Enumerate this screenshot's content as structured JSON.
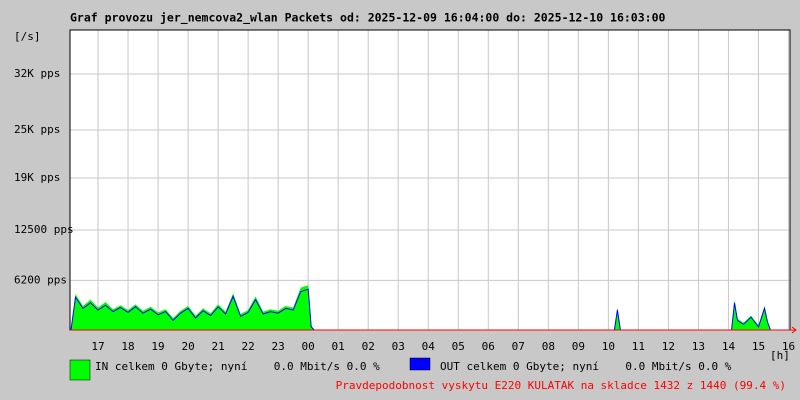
{
  "chart_data": {
    "type": "area",
    "title": "Graf provozu jer_nemcova2_wlan Packets od: 2025-12-09 16:04:00 do: 2025-12-10 16:03:00",
    "y_label": "[/s]",
    "x_label": "[h]",
    "x": [
      16.1,
      16.25,
      16.5,
      16.75,
      17,
      17.25,
      17.5,
      17.75,
      18,
      18.25,
      18.5,
      18.75,
      19,
      19.25,
      19.5,
      19.75,
      20,
      20.25,
      20.5,
      20.75,
      21,
      21.25,
      21.5,
      21.75,
      22,
      22.25,
      22.5,
      22.75,
      23,
      23.25,
      23.5,
      23.75,
      24,
      24.1,
      24.2,
      30,
      34.2,
      34.3,
      34.4,
      34.5,
      36,
      38.1,
      38.2,
      38.3,
      38.5,
      38.75,
      39,
      39.2,
      39.3,
      39.4,
      40.05
    ],
    "series": [
      {
        "name": "IN celkem 0 Gbyte; nyní    0.0 Mbit/s 0.0 %",
        "color": "#00ff00",
        "values": [
          0,
          4500,
          3000,
          3800,
          2800,
          3500,
          2600,
          3100,
          2500,
          3200,
          2400,
          2900,
          2200,
          2600,
          1500,
          2400,
          3000,
          1800,
          2700,
          2100,
          3200,
          2300,
          4600,
          2000,
          2500,
          4200,
          2300,
          2600,
          2400,
          3000,
          2800,
          5300,
          5600,
          600,
          0,
          0,
          0,
          2800,
          0,
          0,
          0,
          0,
          3800,
          1400,
          900,
          1800,
          600,
          3000,
          1200,
          0,
          0
        ]
      },
      {
        "name": "OUT celkem 0 Gbyte; nyní    0.0 Mbit/s 0.0 %",
        "color": "#0000ff",
        "values": [
          0,
          4100,
          2700,
          3400,
          2500,
          3100,
          2300,
          2800,
          2200,
          2900,
          2100,
          2600,
          1900,
          2300,
          1200,
          2100,
          2700,
          1500,
          2400,
          1800,
          2900,
          2000,
          4200,
          1700,
          2200,
          3800,
          2000,
          2300,
          2100,
          2700,
          2500,
          4800,
          5100,
          400,
          0,
          0,
          0,
          2500,
          0,
          0,
          0,
          0,
          3400,
          1200,
          700,
          1600,
          400,
          2700,
          1000,
          0,
          0
        ]
      }
    ],
    "xlim": [
      16.0667,
      40.05
    ],
    "xticks": [
      17,
      18,
      19,
      20,
      21,
      22,
      23,
      {
        "value": 24,
        "label": "00"
      },
      {
        "value": 25,
        "label": "01"
      },
      {
        "value": 26,
        "label": "02"
      },
      {
        "value": 27,
        "label": "03"
      },
      {
        "value": 28,
        "label": "04"
      },
      {
        "value": 29,
        "label": "05"
      },
      {
        "value": 30,
        "label": "06"
      },
      {
        "value": 31,
        "label": "07"
      },
      {
        "value": 32,
        "label": "08"
      },
      {
        "value": 33,
        "label": "09"
      },
      {
        "value": 34,
        "label": "10"
      },
      {
        "value": 35,
        "label": "11"
      },
      {
        "value": 36,
        "label": "12"
      },
      {
        "value": 37,
        "label": "13"
      },
      {
        "value": 38,
        "label": "14"
      },
      {
        "value": 39,
        "label": "15"
      },
      {
        "value": 40,
        "label": "16"
      }
    ],
    "ylim": [
      0,
      37500
    ],
    "yticks": [
      {
        "value": 6200,
        "label": "6200 pps"
      },
      {
        "value": 12500,
        "label": "12500 pps"
      },
      {
        "value": 19000,
        "label": "19K pps"
      },
      {
        "value": 25000,
        "label": "25K pps"
      },
      {
        "value": 32000,
        "label": "32K pps"
      }
    ],
    "grid": true,
    "footnote": "Pravdepodobnost vyskytu E220 KULATAK na skladce 1432 z 1440 (99.4 %)"
  }
}
